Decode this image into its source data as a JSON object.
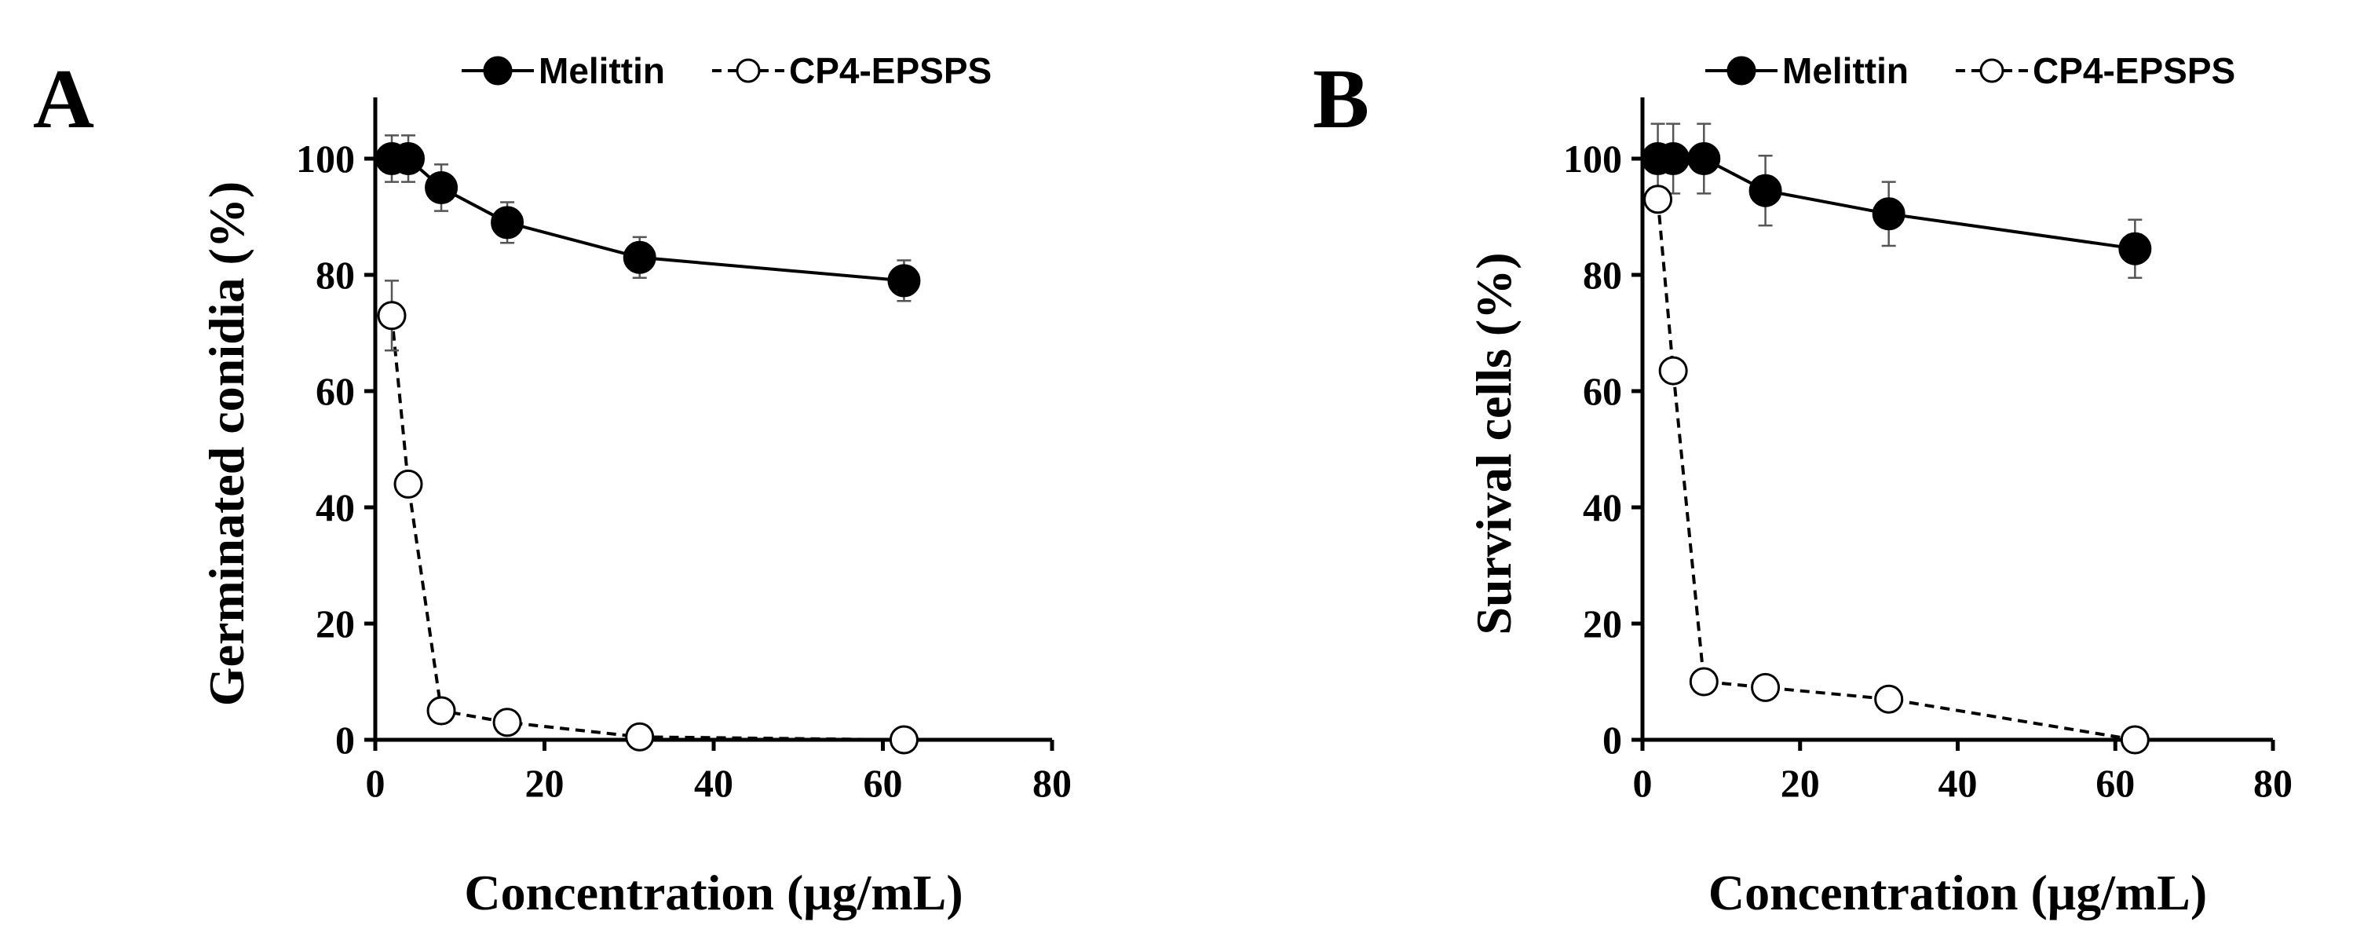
{
  "chart_data": [
    {
      "type": "line",
      "panel_label": "A",
      "xlabel": "Concentration (μg/mL)",
      "ylabel": "Germinated conidia (%)",
      "xlim": [
        0,
        80
      ],
      "ylim": [
        0,
        110
      ],
      "xticks": [
        "0",
        "20",
        "40",
        "60",
        "80"
      ],
      "yticks": [
        "0",
        "20",
        "40",
        "60",
        "80",
        "100"
      ],
      "grid": false,
      "legend_position": "top",
      "series": [
        {
          "name": "Melittin",
          "marker": "filled-circle",
          "line": "solid",
          "x": [
            1.95,
            3.9,
            7.8,
            15.6,
            31.25,
            62.5
          ],
          "values": [
            100,
            100,
            95,
            89,
            83,
            79
          ],
          "errors": [
            4,
            4,
            4,
            3.5,
            3.5,
            3.5
          ]
        },
        {
          "name": "CP4-EPSPS",
          "marker": "open-circle",
          "line": "dashed",
          "x": [
            1.95,
            3.9,
            7.8,
            15.6,
            31.25,
            62.5
          ],
          "values": [
            73,
            44,
            5,
            3,
            0.5,
            0
          ],
          "errors": [
            6,
            0,
            0,
            0,
            0,
            0
          ]
        }
      ]
    },
    {
      "type": "line",
      "panel_label": "B",
      "xlabel": "Concentration (μg/mL)",
      "ylabel": "Survival cells (%)",
      "xlim": [
        0,
        80
      ],
      "ylim": [
        0,
        110
      ],
      "xticks": [
        "0",
        "20",
        "40",
        "60",
        "80"
      ],
      "yticks": [
        "0",
        "20",
        "40",
        "60",
        "80",
        "100"
      ],
      "grid": false,
      "legend_position": "top",
      "series": [
        {
          "name": "Melittin",
          "marker": "filled-circle",
          "line": "solid",
          "x": [
            1.95,
            3.9,
            7.8,
            15.6,
            31.25,
            62.5
          ],
          "values": [
            100,
            100,
            100,
            94.5,
            90.5,
            84.5
          ],
          "errors": [
            6,
            6,
            6,
            6,
            5.5,
            5
          ]
        },
        {
          "name": "CP4-EPSPS",
          "marker": "open-circle",
          "line": "dashed",
          "x": [
            1.95,
            3.9,
            7.8,
            15.6,
            31.25,
            62.5
          ],
          "values": [
            93,
            63.5,
            10,
            9,
            7,
            0
          ],
          "errors": [
            0,
            0,
            0,
            0,
            0,
            0
          ]
        }
      ]
    }
  ]
}
